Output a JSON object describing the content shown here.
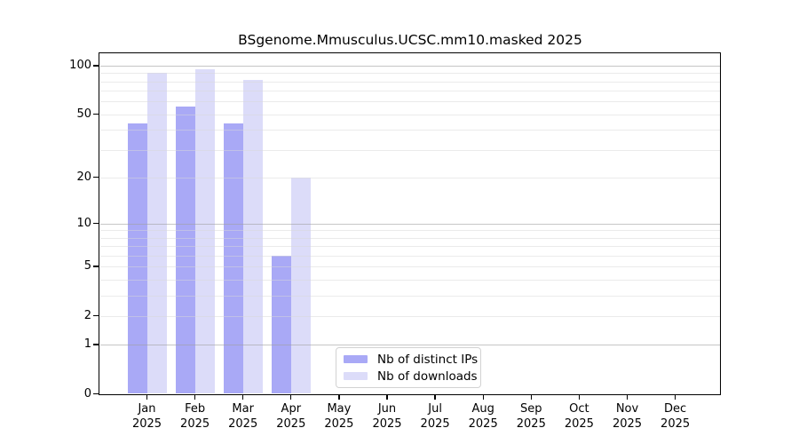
{
  "title": "BSgenome.Mmusculus.UCSC.mm10.masked 2025",
  "chart_data": {
    "type": "bar",
    "title": "BSgenome.Mmusculus.UCSC.mm10.masked 2025",
    "scale": "log1p",
    "categories": [
      "Jan",
      "Feb",
      "Mar",
      "Apr",
      "May",
      "Jun",
      "Jul",
      "Aug",
      "Sep",
      "Oct",
      "Nov",
      "Dec"
    ],
    "year": "2025",
    "series": [
      {
        "name": "Nb of distinct IPs",
        "color": "#a9a9f6",
        "values": [
          44,
          56,
          44,
          6,
          null,
          null,
          null,
          null,
          null,
          null,
          null,
          null
        ]
      },
      {
        "name": "Nb of downloads",
        "color": "#dcdcf9",
        "values": [
          90,
          95,
          82,
          20,
          null,
          null,
          null,
          null,
          null,
          null,
          null,
          null
        ]
      }
    ],
    "xlabel": "",
    "ylabel": "",
    "ylim": [
      0,
      100
    ],
    "yticks": [
      0,
      1,
      2,
      5,
      10,
      20,
      50,
      100
    ],
    "major_gridlines": [
      1,
      10,
      100
    ],
    "minor_gridlines": [
      2,
      3,
      4,
      5,
      6,
      7,
      8,
      9,
      20,
      30,
      40,
      50,
      60,
      70,
      80,
      90
    ],
    "grid": "on",
    "legend_position": "inside-bottom-center",
    "colors": {
      "major_grid": "#c6c6c6",
      "minor_grid": "#ebebeb",
      "axis": "#000000",
      "text": "#000000",
      "background": "#ffffff"
    }
  },
  "legend": {
    "items": [
      {
        "label": "Nb of distinct IPs"
      },
      {
        "label": "Nb of downloads"
      }
    ]
  }
}
